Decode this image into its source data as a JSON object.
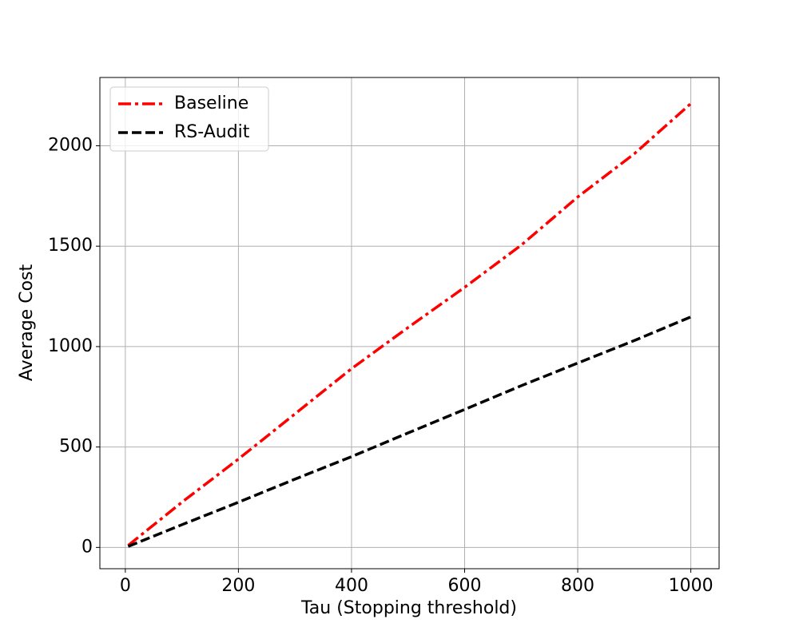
{
  "chart_data": {
    "type": "line",
    "xlabel": "Tau (Stopping threshold)",
    "ylabel": "Average Cost",
    "x": [
      5,
      100,
      200,
      300,
      400,
      500,
      600,
      700,
      800,
      900,
      1000
    ],
    "series": [
      {
        "name": "Baseline",
        "color": "#ff0000",
        "dash": "dashdot",
        "values": [
          10,
          225,
          440,
          665,
          890,
          1095,
          1295,
          1505,
          1745,
          1960,
          2210
        ]
      },
      {
        "name": "RS-Audit",
        "color": "#000000",
        "dash": "dashed",
        "values": [
          5,
          113,
          225,
          340,
          452,
          570,
          687,
          805,
          918,
          1030,
          1148
        ]
      }
    ],
    "xlim": [
      -45,
      1050
    ],
    "ylim": [
      -106,
      2340
    ],
    "xticks": [
      0,
      200,
      400,
      600,
      800,
      1000
    ],
    "yticks": [
      0,
      500,
      1000,
      1500,
      2000
    ],
    "grid": true,
    "legend": "upper-left"
  }
}
